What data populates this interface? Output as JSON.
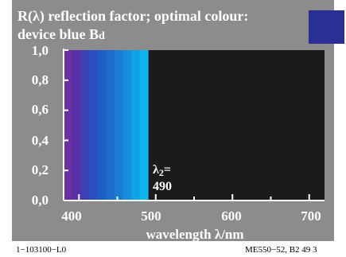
{
  "title": {
    "line1": "R(λ) reflection factor; optimal colour:",
    "line2": "device blue B",
    "line2_subscript": "d"
  },
  "swatch_color": "#2a2f96",
  "chart_data": {
    "type": "area",
    "xlabel": "wavelength λ/nm",
    "ylabel": "",
    "xlim": [
      380,
      720
    ],
    "ylim": [
      0,
      1.0
    ],
    "xticks": [
      "400",
      "500",
      "600",
      "700"
    ],
    "yticks": [
      "1,0",
      "0,8",
      "0,6",
      "0,4",
      "0,2",
      "0,0"
    ],
    "band": {
      "from": 380,
      "to": 490,
      "value": 1.0
    },
    "series": [
      {
        "x": [
          380,
          490,
          490,
          720
        ],
        "values": [
          1.0,
          1.0,
          0.0,
          0.0
        ]
      }
    ],
    "band_colors": [
      "#6b2fa0",
      "#5a30a8",
      "#3d3fb3",
      "#2a4fc0",
      "#1f5cc4",
      "#1d6bcb",
      "#1a7bd3",
      "#168ddb",
      "#10a2e4",
      "#0cb5ec"
    ],
    "annotation": {
      "symbol": "λ",
      "subscript": "2",
      "suffix": "=",
      "value": "490"
    }
  },
  "footer": {
    "left": "1−103100−L0",
    "right": "ME550−52, B2  49  3"
  }
}
